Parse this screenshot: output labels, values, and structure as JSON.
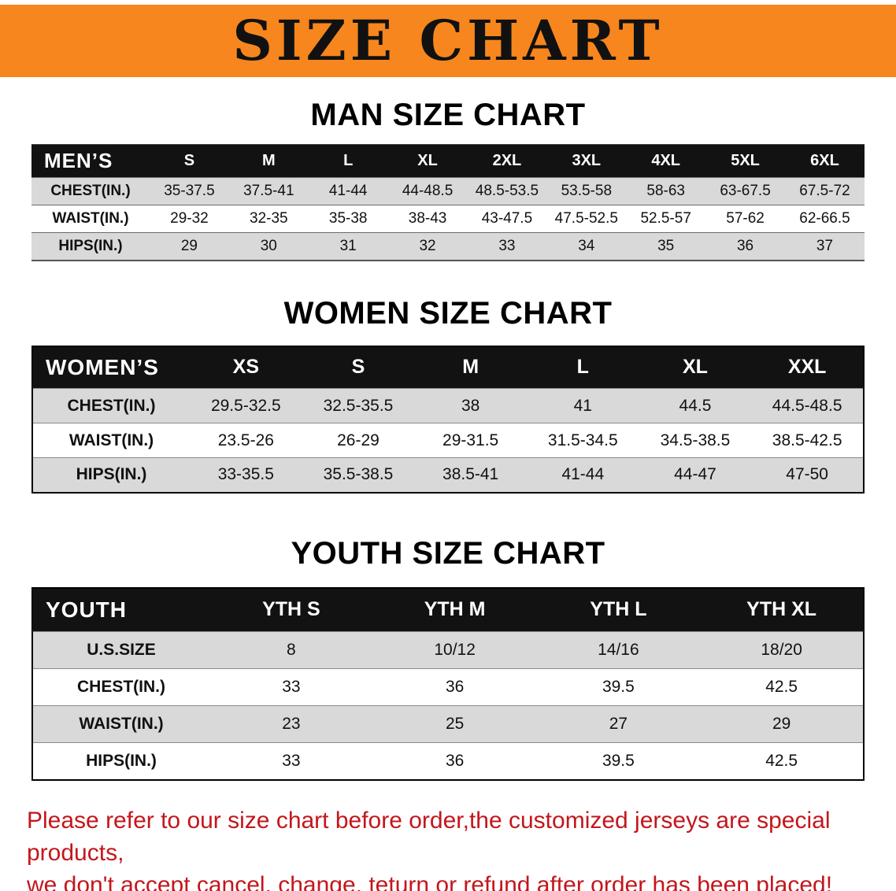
{
  "colors": {
    "banner_bg": "#F6861D",
    "banner_text": "#111111",
    "table_header_bg": "#121212",
    "table_header_text": "#FFFFFF",
    "row_shaded": "#D9D9D9",
    "notice_text": "#C3161C"
  },
  "banner": {
    "title": "SIZE CHART"
  },
  "sections": [
    {
      "id": "mens",
      "heading": "MAN SIZE CHART",
      "table": {
        "header_label": "MEN’S",
        "columns": [
          "S",
          "M",
          "L",
          "XL",
          "2XL",
          "3XL",
          "4XL",
          "5XL",
          "6XL"
        ],
        "rows": [
          {
            "label": "CHEST(IN.)",
            "values": [
              "35-37.5",
              "37.5-41",
              "41-44",
              "44-48.5",
              "48.5-53.5",
              "53.5-58",
              "58-63",
              "63-67.5",
              "67.5-72"
            ]
          },
          {
            "label": "WAIST(IN.)",
            "values": [
              "29-32",
              "32-35",
              "35-38",
              "38-43",
              "43-47.5",
              "47.5-52.5",
              "52.5-57",
              "57-62",
              "62-66.5"
            ]
          },
          {
            "label": "HIPS(IN.)",
            "values": [
              "29",
              "30",
              "31",
              "32",
              "33",
              "34",
              "35",
              "36",
              "37"
            ]
          }
        ]
      }
    },
    {
      "id": "womens",
      "heading": "WOMEN SIZE CHART",
      "table": {
        "header_label": "WOMEN’S",
        "columns": [
          "XS",
          "S",
          "M",
          "L",
          "XL",
          "XXL"
        ],
        "rows": [
          {
            "label": "CHEST(IN.)",
            "values": [
              "29.5-32.5",
              "32.5-35.5",
              "38",
              "41",
              "44.5",
              "44.5-48.5"
            ]
          },
          {
            "label": "WAIST(IN.)",
            "values": [
              "23.5-26",
              "26-29",
              "29-31.5",
              "31.5-34.5",
              "34.5-38.5",
              "38.5-42.5"
            ]
          },
          {
            "label": "HIPS(IN.)",
            "values": [
              "33-35.5",
              "35.5-38.5",
              "38.5-41",
              "41-44",
              "44-47",
              "47-50"
            ]
          }
        ]
      }
    },
    {
      "id": "youth",
      "heading": "YOUTH SIZE CHART",
      "table": {
        "header_label": "YOUTH",
        "columns": [
          "YTH S",
          "YTH M",
          "YTH L",
          "YTH XL"
        ],
        "rows": [
          {
            "label": "U.S.SIZE",
            "values": [
              "8",
              "10/12",
              "14/16",
              "18/20"
            ]
          },
          {
            "label": "CHEST(IN.)",
            "values": [
              "33",
              "36",
              "39.5",
              "42.5"
            ]
          },
          {
            "label": "WAIST(IN.)",
            "values": [
              "23",
              "25",
              "27",
              "29"
            ]
          },
          {
            "label": "HIPS(IN.)",
            "values": [
              "33",
              "36",
              "39.5",
              "42.5"
            ]
          }
        ]
      }
    }
  ],
  "footer": {
    "line1": "Please refer to our size chart before order,the customized jerseys are special products,",
    "line2": "we don't accept cancel, change, teturn or refund after order has been placed!"
  }
}
